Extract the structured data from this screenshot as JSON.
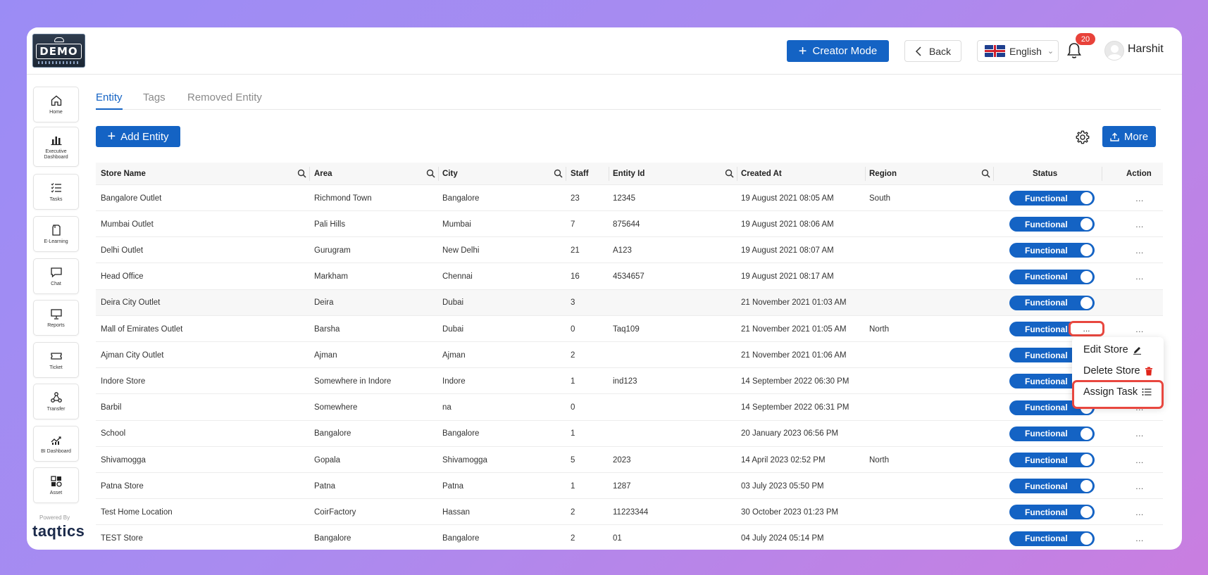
{
  "header": {
    "logo_text": "DEMO",
    "creator_mode_label": "Creator Mode",
    "back_label": "Back",
    "language": "English",
    "notification_count": "20",
    "username": "Harshit"
  },
  "sidebar": {
    "items": [
      {
        "label": "Home",
        "icon": "home-icon"
      },
      {
        "label": "Executive Dashboard",
        "icon": "bar-chart-icon"
      },
      {
        "label": "Tasks",
        "icon": "task-list-icon"
      },
      {
        "label": "E-Learning",
        "icon": "document-icon"
      },
      {
        "label": "Chat",
        "icon": "chat-icon"
      },
      {
        "label": "Reports",
        "icon": "presentation-icon"
      },
      {
        "label": "Ticket",
        "icon": "ticket-icon"
      },
      {
        "label": "Transfer",
        "icon": "transfer-icon"
      },
      {
        "label": "BI Dashboard",
        "icon": "analytics-icon"
      },
      {
        "label": "Asset",
        "icon": "asset-icon"
      }
    ],
    "powered_by": "Powered By",
    "brand": "taqtics"
  },
  "tabs": [
    {
      "label": "Entity",
      "active": true
    },
    {
      "label": "Tags",
      "active": false
    },
    {
      "label": "Removed Entity",
      "active": false
    }
  ],
  "toolbar": {
    "add_label": "Add Entity",
    "more_label": "More"
  },
  "table": {
    "columns": [
      "Store Name",
      "Area",
      "City",
      "Staff",
      "Entity Id",
      "Created At",
      "Region",
      "Status",
      "Action"
    ],
    "rows": [
      {
        "store": "Bangalore Outlet",
        "area": "Richmond Town",
        "city": "Bangalore",
        "staff": "23",
        "entity_id": "12345",
        "created": "19 August 2021 08:05 AM",
        "region": "South",
        "status": "Functional"
      },
      {
        "store": "Mumbai Outlet",
        "area": "Pali Hills",
        "city": "Mumbai",
        "staff": "7",
        "entity_id": "875644",
        "created": "19 August 2021 08:06 AM",
        "region": "",
        "status": "Functional"
      },
      {
        "store": "Delhi Outlet",
        "area": "Gurugram",
        "city": "New Delhi",
        "staff": "21",
        "entity_id": "A123",
        "created": "19 August 2021 08:07 AM",
        "region": "",
        "status": "Functional"
      },
      {
        "store": "Head Office",
        "area": "Markham",
        "city": "Chennai",
        "staff": "16",
        "entity_id": "4534657",
        "created": "19 August 2021 08:17 AM",
        "region": "",
        "status": "Functional"
      },
      {
        "store": "Deira City Outlet",
        "area": "Deira",
        "city": "Dubai",
        "staff": "3",
        "entity_id": "",
        "created": "21 November 2021 01:03 AM",
        "region": "",
        "status": "Functional"
      },
      {
        "store": "Mall of Emirates Outlet",
        "area": "Barsha",
        "city": "Dubai",
        "staff": "0",
        "entity_id": "Taq109",
        "created": "21 November 2021 01:05 AM",
        "region": "North",
        "status": "Functional"
      },
      {
        "store": "Ajman City Outlet",
        "area": "Ajman",
        "city": "Ajman",
        "staff": "2",
        "entity_id": "",
        "created": "21 November 2021 01:06 AM",
        "region": "",
        "status": "Functional"
      },
      {
        "store": "Indore Store",
        "area": "Somewhere in Indore",
        "city": "Indore",
        "staff": "1",
        "entity_id": "ind123",
        "created": "14 September 2022 06:30 PM",
        "region": "",
        "status": "Functional"
      },
      {
        "store": "Barbil",
        "area": "Somewhere",
        "city": "na",
        "staff": "0",
        "entity_id": "",
        "created": "14 September 2022 06:31 PM",
        "region": "",
        "status": "Functional"
      },
      {
        "store": "School",
        "area": "Bangalore",
        "city": "Bangalore",
        "staff": "1",
        "entity_id": "",
        "created": "20 January 2023 06:56 PM",
        "region": "",
        "status": "Functional"
      },
      {
        "store": "Shivamogga",
        "area": "Gopala",
        "city": "Shivamogga",
        "staff": "5",
        "entity_id": "2023",
        "created": "14 April 2023 02:52 PM",
        "region": "North",
        "status": "Functional"
      },
      {
        "store": "Patna Store",
        "area": "Patna",
        "city": "Patna",
        "staff": "1",
        "entity_id": "1287",
        "created": "03 July 2023 05:50 PM",
        "region": "",
        "status": "Functional"
      },
      {
        "store": "Test Home Location",
        "area": "CoirFactory",
        "city": "Hassan",
        "staff": "2",
        "entity_id": "11223344",
        "created": "30 October 2023 01:23 PM",
        "region": "",
        "status": "Functional"
      },
      {
        "store": "TEST Store",
        "area": "Bangalore",
        "city": "Bangalore",
        "staff": "2",
        "entity_id": "01",
        "created": "04 July 2024 05:14 PM",
        "region": "",
        "status": "Functional"
      }
    ],
    "action_label": "..."
  },
  "menu": {
    "edit": "Edit Store",
    "delete": "Delete Store",
    "assign": "Assign Task"
  },
  "colors": {
    "primary": "#1463c4",
    "highlight": "#e8473f",
    "delete_icon": "#e0241a"
  }
}
